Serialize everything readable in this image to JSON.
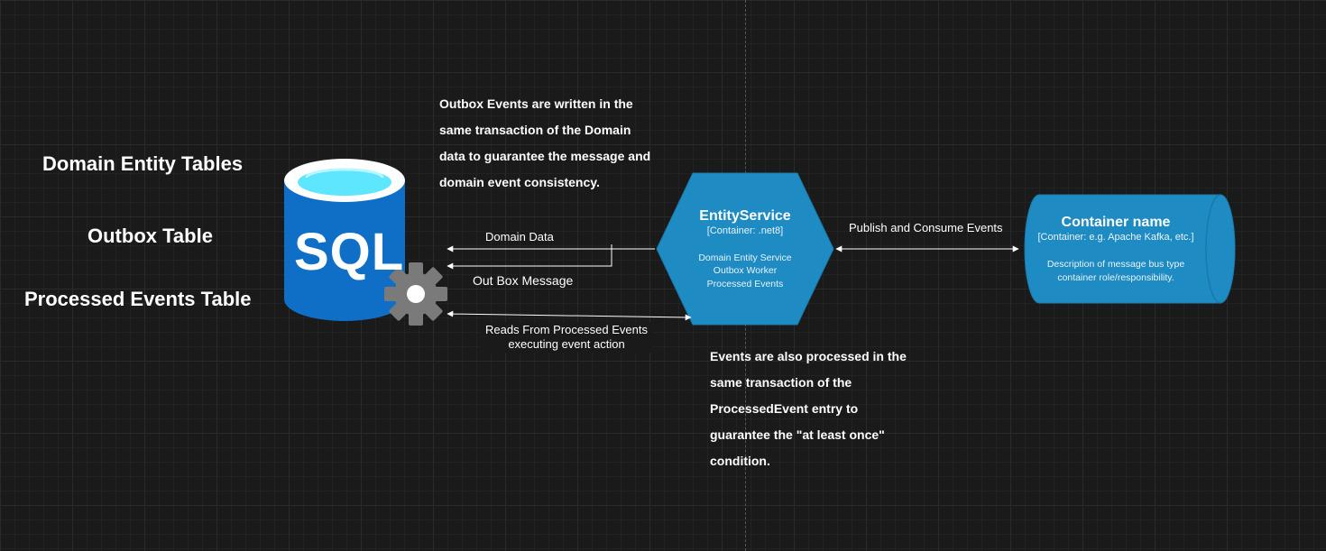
{
  "labels": {
    "domain_entity_tables": "Domain Entity Tables",
    "outbox_table": "Outbox Table",
    "processed_events_table": "Processed Events Table"
  },
  "database": {
    "text": "SQL",
    "colors": {
      "body": "#0f6fc6",
      "top": "#5ee6ff",
      "gear": "#7a7a7a"
    }
  },
  "notes": {
    "outbox_note": "Outbox Events are written in the same transaction of the Domain data to guarantee the message and domain event consistency.",
    "processed_note": "Events are also processed in the same transaction of the ProcessedEvent entry to guarantee the \"at least once\" condition."
  },
  "edges": {
    "domain_data": "Domain Data",
    "out_box_message": "Out Box Message",
    "reads_line1": "Reads From Processed Events",
    "reads_line2": "executing event action",
    "publish_consume": "Publish and Consume Events"
  },
  "entity_service": {
    "title": "EntityService",
    "container": "[Container: .net8]",
    "desc1": "Domain Entity Service",
    "desc2": "Outbox Worker",
    "desc3": "Processed Events",
    "color": "#1e8bc3"
  },
  "message_bus": {
    "title": "Container name",
    "container": "[Container: e.g. Apache Kafka, etc.]",
    "description": "Description of message bus type container role/responsibility.",
    "color": "#1e8bc3"
  }
}
